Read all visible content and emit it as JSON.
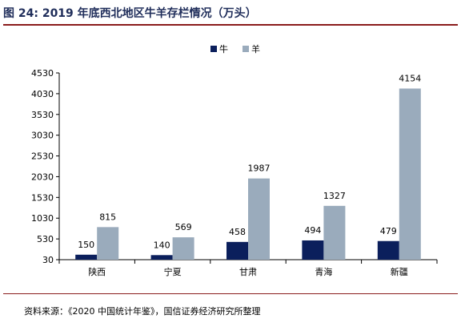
{
  "figure": {
    "title": "图 24:  2019 年底西北地区牛羊存栏情况（万头）",
    "source": "资料来源：《2020 中国统计年鉴》，国信证券经济研究所整理"
  },
  "colors": {
    "cattle": "#0b1f5c",
    "sheep": "#9aabbc",
    "axis": "#000000"
  },
  "chart_data": {
    "type": "bar",
    "title": "",
    "xlabel": "",
    "ylabel": "",
    "categories": [
      "陕西",
      "宁夏",
      "甘肃",
      "青海",
      "新疆"
    ],
    "series": [
      {
        "name": "牛",
        "values": [
          150,
          140,
          458,
          494,
          479
        ]
      },
      {
        "name": "羊",
        "values": [
          815,
          569,
          1987,
          1327,
          4154
        ]
      }
    ],
    "ylim": [
      30,
      4530
    ],
    "yticks": [
      30,
      530,
      1030,
      1530,
      2030,
      2530,
      3030,
      3530,
      4030,
      4530
    ],
    "grid": false,
    "legend": "top-center",
    "data_labels": true
  }
}
